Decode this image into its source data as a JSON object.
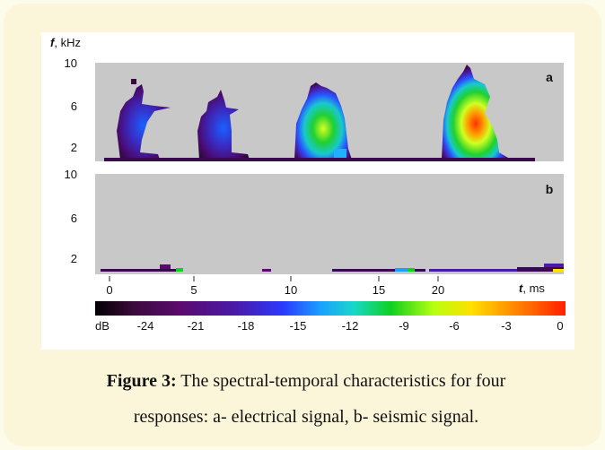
{
  "figure": {
    "y_axis_var": "f",
    "y_axis_unit": ", kHz",
    "x_axis_var": "t",
    "x_axis_unit": ", ms",
    "panel_a_label": "a",
    "panel_b_label": "b",
    "y_ticks": [
      "10",
      "6",
      "2"
    ],
    "x_ticks": [
      "0",
      "5",
      "10",
      "15",
      "20"
    ],
    "colorbar_unit": "dB",
    "colorbar_ticks": [
      "-24",
      "-21",
      "-18",
      "-15",
      "-12",
      "-9",
      "-6",
      "-3",
      "0"
    ],
    "colors": {
      "panel_bg": "#c8c8c8",
      "scale": [
        "#000000",
        "#3a0a3a",
        "#5a0a6e",
        "#4a1aa8",
        "#2a3aff",
        "#1aa0ff",
        "#18d8c8",
        "#10d020",
        "#b8ff10",
        "#ffe000",
        "#ff8000",
        "#ff2000"
      ]
    }
  },
  "caption": {
    "label": "Figure 3:",
    "line1": " The spectral-temporal characteristics for four",
    "line2": "responses: a- electrical signal, b- seismic signal."
  }
}
